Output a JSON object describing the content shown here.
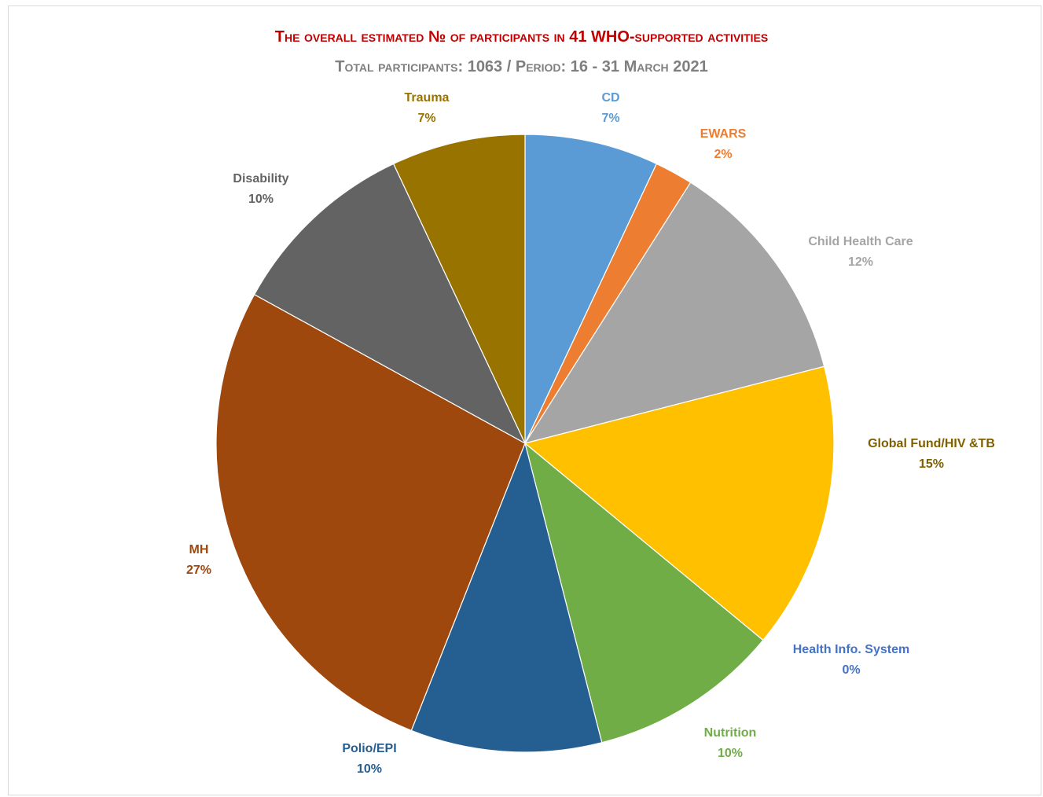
{
  "chart_data": {
    "type": "pie",
    "title": "The overall estimated № of participants in 41 WHO-supported activities",
    "subtitle": "Total participants: 1063  /  Period: 16 - 31 March 2021",
    "legend": "none",
    "slices": [
      {
        "label": "CD",
        "value": 7,
        "value_label": "7%",
        "color": "#5b9bd5",
        "label_color": "#5b9bd5"
      },
      {
        "label": "EWARS",
        "value": 2,
        "value_label": "2%",
        "color": "#ed7d31",
        "label_color": "#ed7d31"
      },
      {
        "label": "Child Health Care",
        "value": 12,
        "value_label": "12%",
        "color": "#a5a5a5",
        "label_color": "#a5a5a5"
      },
      {
        "label": "Global Fund/HIV &TB",
        "value": 15,
        "value_label": "15%",
        "color": "#ffc000",
        "label_color": "#7f6000"
      },
      {
        "label": "Health Info. System",
        "value": 0,
        "value_label": "0%",
        "color": "#4472c4",
        "label_color": "#4472c4"
      },
      {
        "label": "Nutrition",
        "value": 10,
        "value_label": "10%",
        "color": "#70ad47",
        "label_color": "#70ad47"
      },
      {
        "label": "Polio/EPI",
        "value": 10,
        "value_label": "10%",
        "color": "#255e91",
        "label_color": "#255e91"
      },
      {
        "label": "MH",
        "value": 27,
        "value_label": "27%",
        "color": "#9e480e",
        "label_color": "#9e480e"
      },
      {
        "label": "Disability",
        "value": 10,
        "value_label": "10%",
        "color": "#636363",
        "label_color": "#636363"
      },
      {
        "label": "Trauma",
        "value": 7,
        "value_label": "7%",
        "color": "#997300",
        "label_color": "#997300"
      }
    ]
  }
}
